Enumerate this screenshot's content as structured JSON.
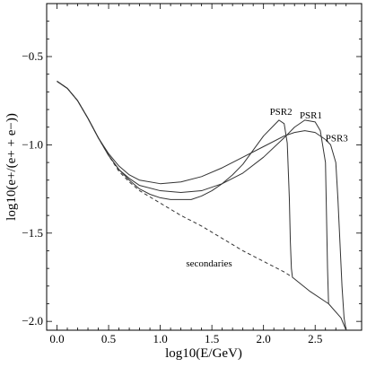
{
  "chart_data": {
    "type": "line",
    "title": "",
    "xlabel": "log10(E/GeV)",
    "ylabel": "log10(e+/(e+ + e−))",
    "xlim": [
      -0.1,
      2.95
    ],
    "ylim": [
      -2.05,
      -0.2
    ],
    "x_ticks": [
      0.0,
      0.5,
      1.0,
      1.5,
      2.0,
      2.5
    ],
    "x_tick_labels": [
      "0.0",
      "0.5",
      "1.0",
      "1.5",
      "2.0",
      "2.5"
    ],
    "y_ticks": [
      -0.5,
      -1.0,
      -1.5,
      -2.0
    ],
    "y_tick_labels": [
      "−0.5",
      "−1.0",
      "−1.5",
      "−2.0"
    ],
    "grid": false,
    "legend": "none",
    "series": [
      {
        "name": "secondaries",
        "style": "dashed",
        "color": "#333333",
        "x": [
          0.0,
          0.1,
          0.2,
          0.3,
          0.4,
          0.5,
          0.6,
          0.7,
          0.8,
          1.0,
          1.2,
          1.4,
          1.6,
          1.8,
          2.0,
          2.2,
          2.28
        ],
        "y": [
          -0.64,
          -0.68,
          -0.75,
          -0.85,
          -0.96,
          -1.06,
          -1.15,
          -1.21,
          -1.26,
          -1.33,
          -1.4,
          -1.46,
          -1.53,
          -1.6,
          -1.66,
          -1.72,
          -1.75
        ]
      },
      {
        "name": "PSR2",
        "style": "solid",
        "color": "#333333",
        "x": [
          0.0,
          0.1,
          0.2,
          0.3,
          0.4,
          0.5,
          0.6,
          0.7,
          0.8,
          0.9,
          1.0,
          1.1,
          1.2,
          1.3,
          1.4,
          1.5,
          1.6,
          1.7,
          1.8,
          1.9,
          2.0,
          2.1,
          2.15,
          2.2,
          2.23,
          2.25,
          2.26,
          2.27,
          2.28
        ],
        "y": [
          -0.64,
          -0.68,
          -0.75,
          -0.85,
          -0.96,
          -1.06,
          -1.14,
          -1.2,
          -1.25,
          -1.28,
          -1.3,
          -1.31,
          -1.31,
          -1.31,
          -1.29,
          -1.26,
          -1.22,
          -1.17,
          -1.11,
          -1.03,
          -0.95,
          -0.89,
          -0.86,
          -0.88,
          -0.99,
          -1.3,
          -1.55,
          -1.7,
          -1.75
        ]
      },
      {
        "name": "PSR1",
        "style": "solid",
        "color": "#333333",
        "x": [
          0.0,
          0.1,
          0.2,
          0.3,
          0.4,
          0.5,
          0.6,
          0.7,
          0.8,
          1.0,
          1.2,
          1.4,
          1.6,
          1.8,
          2.0,
          2.2,
          2.3,
          2.4,
          2.5,
          2.55,
          2.6,
          2.61,
          2.62,
          2.63
        ],
        "y": [
          -0.64,
          -0.68,
          -0.75,
          -0.85,
          -0.96,
          -1.06,
          -1.14,
          -1.19,
          -1.23,
          -1.26,
          -1.27,
          -1.26,
          -1.22,
          -1.16,
          -1.07,
          -0.96,
          -0.9,
          -0.86,
          -0.87,
          -0.92,
          -1.1,
          -1.4,
          -1.7,
          -1.9
        ]
      },
      {
        "name": "PSR3",
        "style": "solid",
        "color": "#333333",
        "x": [
          0.0,
          0.1,
          0.2,
          0.3,
          0.4,
          0.5,
          0.6,
          0.7,
          0.8,
          1.0,
          1.2,
          1.4,
          1.6,
          1.8,
          2.0,
          2.2,
          2.3,
          2.4,
          2.5,
          2.6,
          2.65,
          2.7,
          2.72,
          2.74,
          2.76,
          2.78,
          2.8
        ],
        "y": [
          -0.64,
          -0.68,
          -0.75,
          -0.85,
          -0.96,
          -1.05,
          -1.12,
          -1.17,
          -1.2,
          -1.22,
          -1.21,
          -1.18,
          -1.13,
          -1.07,
          -1.01,
          -0.95,
          -0.93,
          -0.92,
          -0.93,
          -0.97,
          -1.0,
          -1.1,
          -1.3,
          -1.55,
          -1.8,
          -1.98,
          -2.05
        ]
      },
      {
        "name": "",
        "style": "solid",
        "color": "#333333",
        "x": [
          2.28,
          2.45,
          2.63,
          2.75,
          2.8
        ],
        "y": [
          -1.75,
          -1.83,
          -1.9,
          -1.98,
          -2.05
        ]
      }
    ],
    "annotations": [
      {
        "text": "PSR2",
        "x": 2.06,
        "y": -0.83
      },
      {
        "text": "PSR1",
        "x": 2.35,
        "y": -0.85
      },
      {
        "text": "PSR3",
        "x": 2.6,
        "y": -0.98
      },
      {
        "text": "secondaries",
        "x": 1.25,
        "y": -1.69
      }
    ]
  }
}
